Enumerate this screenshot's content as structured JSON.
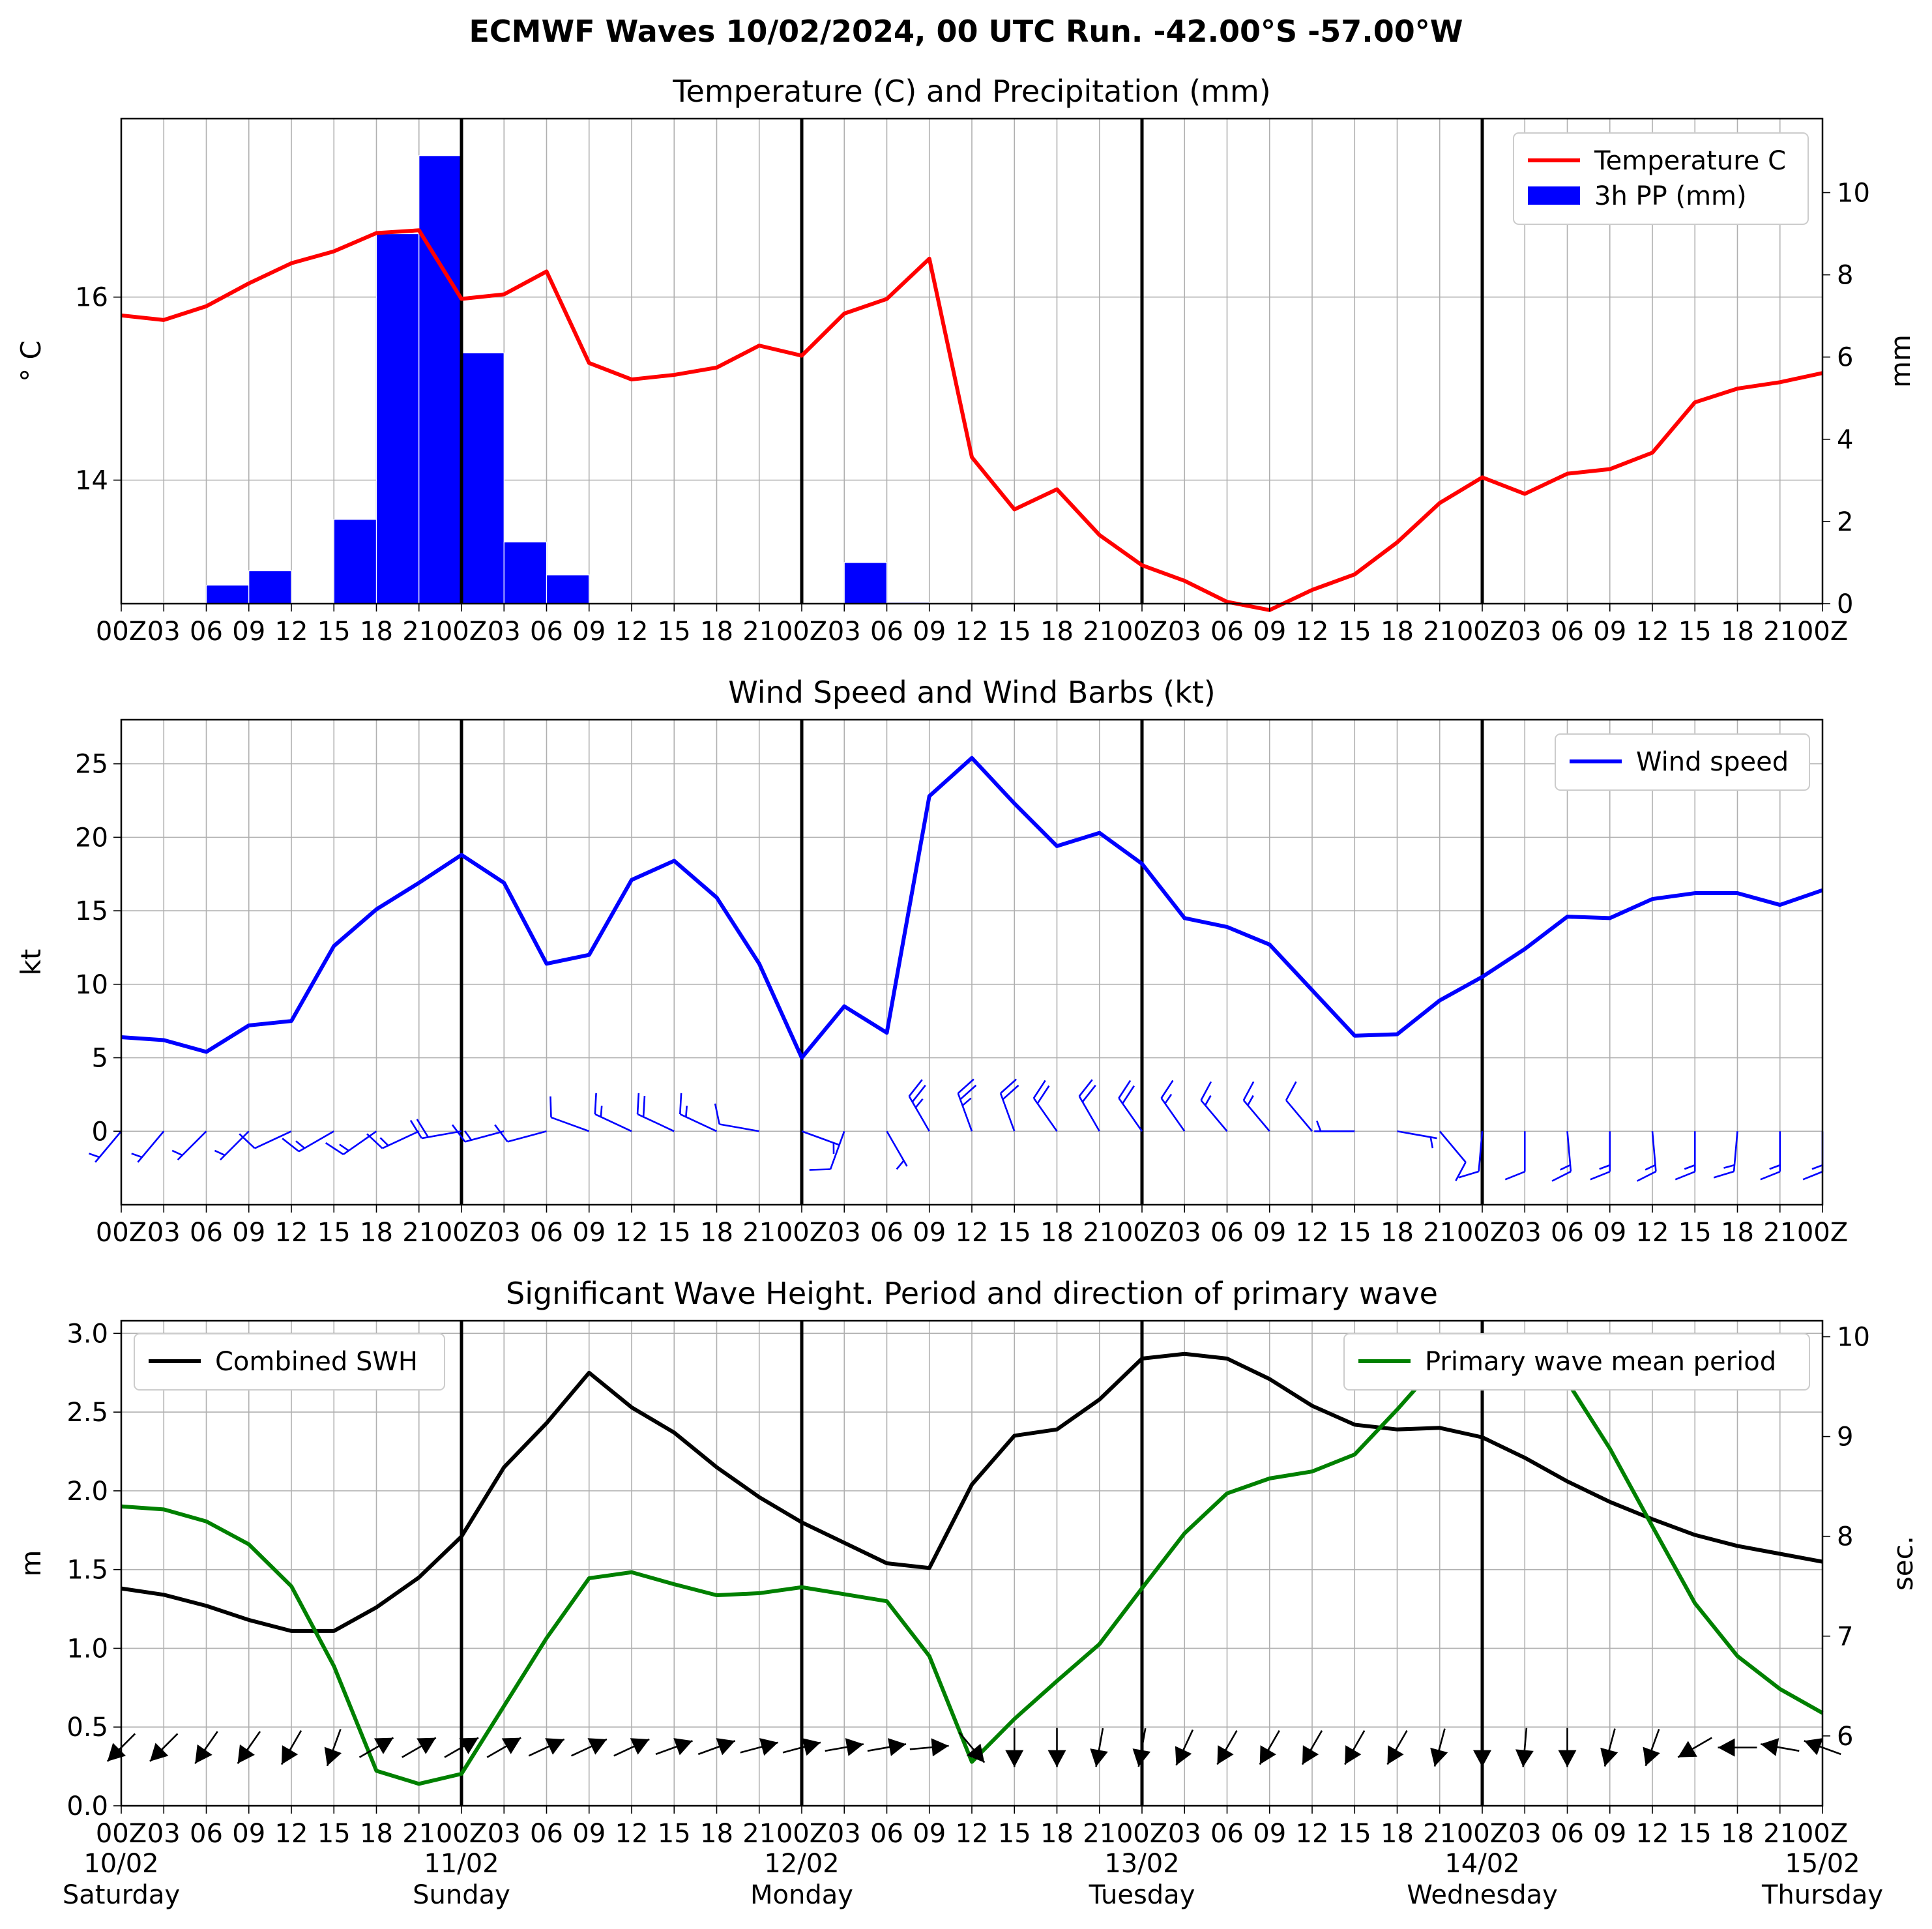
{
  "suptitle": "ECMWF Waves 10/02/2024, 00 UTC Run. -42.00°S -57.00°W",
  "x_tick_labels": [
    "00Z",
    "03",
    "06",
    "09",
    "12",
    "15",
    "18",
    "21",
    "00Z",
    "03",
    "06",
    "09",
    "12",
    "15",
    "18",
    "21",
    "00Z",
    "03",
    "06",
    "09",
    "12",
    "15",
    "18",
    "21",
    "00Z",
    "03",
    "06",
    "09",
    "12",
    "15",
    "18",
    "21",
    "00Z",
    "03",
    "06",
    "09",
    "12",
    "15",
    "18",
    "21",
    "00Z"
  ],
  "days": [
    {
      "date": "10/02",
      "weekday": "Saturday"
    },
    {
      "date": "11/02",
      "weekday": "Sunday"
    },
    {
      "date": "12/02",
      "weekday": "Monday"
    },
    {
      "date": "13/02",
      "weekday": "Tuesday"
    },
    {
      "date": "14/02",
      "weekday": "Wednesday"
    },
    {
      "date": "15/02",
      "weekday": "Thursday"
    }
  ],
  "colors": {
    "temperature": "#ff0000",
    "precipitation": "#0000ff",
    "wind": "#0000ff",
    "swh": "#000000",
    "period": "#008000"
  },
  "chart_data": [
    {
      "type": "line",
      "title": "Temperature (C) and Precipitation (mm)",
      "ylabel": "° C",
      "ylabel_right": "mm",
      "x_hours": [
        0,
        3,
        6,
        9,
        12,
        15,
        18,
        21,
        24,
        27,
        30,
        33,
        36,
        39,
        42,
        45,
        48,
        51,
        54,
        57,
        60,
        63,
        66,
        69,
        72,
        75,
        78,
        81,
        84,
        87,
        90,
        93,
        96,
        99,
        102,
        105,
        108,
        111,
        114,
        117,
        120
      ],
      "xlim": [
        0,
        120
      ],
      "ylim": [
        12.65,
        17.95
      ],
      "yticks": [
        14,
        16
      ],
      "y2lim": [
        0,
        11.8
      ],
      "y2ticks": [
        0,
        2,
        4,
        6,
        8,
        10
      ],
      "grid": true,
      "legend": "top-right",
      "series": [
        {
          "name": "Temperature C",
          "kind": "line",
          "axis": "left",
          "values": [
            15.8,
            15.75,
            15.9,
            16.15,
            16.37,
            16.5,
            16.7,
            16.73,
            15.98,
            16.03,
            16.28,
            15.28,
            15.1,
            15.15,
            15.23,
            15.47,
            15.36,
            15.82,
            15.98,
            16.42,
            14.25,
            13.68,
            13.9,
            13.4,
            13.07,
            12.9,
            12.67,
            12.58,
            12.8,
            12.97,
            13.32,
            13.75,
            14.03,
            13.85,
            14.07,
            14.12,
            14.3,
            14.85,
            15.0,
            15.07,
            15.17
          ]
        },
        {
          "name": "3h PP (mm)",
          "kind": "bar",
          "axis": "right",
          "x_hours": [
            1.5,
            4.5,
            7.5,
            10.5,
            13.5,
            16.5,
            19.5,
            22.5,
            25.5,
            28.5,
            31.5,
            34.5,
            37.5,
            40.5,
            43.5,
            46.5,
            49.5,
            52.5,
            55.5,
            58.5
          ],
          "values": [
            0,
            0.02,
            0.45,
            0.8,
            0.02,
            2.05,
            9.0,
            10.9,
            6.1,
            1.5,
            0.7,
            0,
            0,
            0,
            0,
            0,
            0,
            1.0,
            0.03,
            0
          ]
        }
      ]
    },
    {
      "type": "line",
      "title": "Wind Speed and Wind Barbs (kt)",
      "ylabel": "kt",
      "x_hours": [
        0,
        3,
        6,
        9,
        12,
        15,
        18,
        21,
        24,
        27,
        30,
        33,
        36,
        39,
        42,
        45,
        48,
        51,
        54,
        57,
        60,
        63,
        66,
        69,
        72,
        75,
        78,
        81,
        84,
        87,
        90,
        93,
        96,
        99,
        102,
        105,
        108,
        111,
        114,
        117,
        120
      ],
      "xlim": [
        0,
        120
      ],
      "ylim": [
        -5,
        28
      ],
      "yticks": [
        0,
        5,
        10,
        15,
        20,
        25
      ],
      "grid": true,
      "legend": "top-right",
      "series": [
        {
          "name": "Wind speed",
          "kind": "line",
          "values": [
            6.4,
            6.2,
            5.4,
            7.2,
            7.5,
            12.6,
            15.1,
            16.9,
            18.8,
            16.9,
            11.4,
            12.0,
            17.1,
            18.4,
            15.9,
            11.4,
            5.0,
            8.5,
            6.7,
            22.8,
            25.4,
            22.3,
            19.4,
            20.3,
            18.2,
            14.5,
            13.9,
            12.7,
            9.6,
            6.5,
            6.6,
            8.9,
            10.5,
            12.4,
            14.6,
            14.5,
            15.8,
            16.2,
            16.2,
            15.4,
            16.4
          ]
        },
        {
          "name": "",
          "kind": "barb",
          "x_hours": [
            0,
            3,
            6,
            9,
            12,
            15,
            18,
            21,
            24,
            27,
            30,
            33,
            36,
            39,
            42,
            45,
            48,
            51,
            54,
            57,
            60,
            63,
            66,
            69,
            72,
            75,
            78,
            81,
            84,
            87,
            90,
            93,
            96,
            99,
            102,
            105,
            108,
            111,
            114,
            117,
            120
          ],
          "direction_deg": [
            220,
            220,
            225,
            225,
            245,
            240,
            235,
            245,
            260,
            255,
            255,
            290,
            295,
            295,
            295,
            280,
            110,
            200,
            150,
            330,
            340,
            340,
            325,
            330,
            325,
            325,
            320,
            320,
            320,
            270,
            100,
            140,
            185,
            180,
            175,
            180,
            175,
            180,
            185,
            180,
            180
          ],
          "speed_kt": [
            6.4,
            6.2,
            5.4,
            7.2,
            7.5,
            12.6,
            15.1,
            16.9,
            18.8,
            16.9,
            11.4,
            12.0,
            17.1,
            18.4,
            15.9,
            11.4,
            5.0,
            8.5,
            6.7,
            22.8,
            25.4,
            22.3,
            19.4,
            20.3,
            18.2,
            14.5,
            13.9,
            12.7,
            9.6,
            6.5,
            6.6,
            8.9,
            10.5,
            12.4,
            14.6,
            14.5,
            15.8,
            16.2,
            16.2,
            15.4,
            16.4
          ]
        }
      ]
    },
    {
      "type": "line",
      "title": "Significant Wave Height. Period and direction of primary wave",
      "ylabel": "m",
      "ylabel_right": "sec.",
      "x_hours": [
        0,
        3,
        6,
        9,
        12,
        15,
        18,
        21,
        24,
        27,
        30,
        33,
        36,
        39,
        42,
        45,
        48,
        51,
        54,
        57,
        60,
        63,
        66,
        69,
        72,
        75,
        78,
        81,
        84,
        87,
        90,
        93,
        96,
        99,
        102,
        105,
        108,
        111,
        114,
        117,
        120
      ],
      "xlim": [
        0,
        120
      ],
      "ylim": [
        0,
        3.08
      ],
      "yticks": [
        0.0,
        0.5,
        1.0,
        1.5,
        2.0,
        2.5,
        3.0
      ],
      "y2lim": [
        5.3,
        10.16
      ],
      "y2ticks": [
        6,
        7,
        8,
        9,
        10
      ],
      "grid": true,
      "series": [
        {
          "name": "Combined SWH",
          "kind": "line",
          "axis": "left",
          "legend": "top-left",
          "values": [
            1.38,
            1.34,
            1.27,
            1.18,
            1.11,
            1.11,
            1.26,
            1.45,
            1.71,
            2.15,
            2.43,
            2.75,
            2.53,
            2.37,
            2.15,
            1.96,
            1.8,
            1.67,
            1.54,
            1.51,
            2.04,
            2.35,
            2.39,
            2.58,
            2.84,
            2.87,
            2.84,
            2.71,
            2.54,
            2.42,
            2.39,
            2.4,
            2.34,
            2.21,
            2.06,
            1.93,
            1.82,
            1.72,
            1.65,
            1.6,
            1.55
          ]
        },
        {
          "name": "Primary wave mean period",
          "kind": "line",
          "axis": "right",
          "legend": "top-right",
          "values": [
            8.3,
            8.27,
            8.15,
            7.92,
            7.5,
            6.7,
            5.65,
            5.52,
            5.62,
            6.3,
            6.98,
            7.58,
            7.64,
            7.52,
            7.41,
            7.43,
            7.49,
            7.42,
            7.35,
            6.8,
            5.74,
            6.17,
            6.55,
            6.92,
            7.48,
            8.03,
            8.43,
            8.58,
            8.65,
            8.82,
            9.27,
            9.75,
            9.96,
            9.94,
            9.55,
            8.88,
            8.1,
            7.33,
            6.8,
            6.47,
            6.23
          ]
        },
        {
          "name": "",
          "kind": "direction_arrows",
          "x_hours": [
            0,
            3,
            6,
            9,
            12,
            15,
            18,
            21,
            24,
            27,
            30,
            33,
            36,
            39,
            42,
            45,
            48,
            51,
            54,
            57,
            60,
            63,
            66,
            69,
            72,
            75,
            78,
            81,
            84,
            87,
            90,
            93,
            96,
            99,
            102,
            105,
            108,
            111,
            114,
            117,
            120
          ],
          "direction_deg": [
            225,
            225,
            215,
            215,
            210,
            200,
            60,
            60,
            60,
            60,
            65,
            65,
            65,
            70,
            70,
            75,
            75,
            80,
            80,
            85,
            140,
            180,
            180,
            190,
            190,
            205,
            210,
            210,
            210,
            210,
            210,
            195,
            180,
            185,
            180,
            195,
            200,
            240,
            270,
            280,
            290
          ]
        }
      ]
    }
  ]
}
